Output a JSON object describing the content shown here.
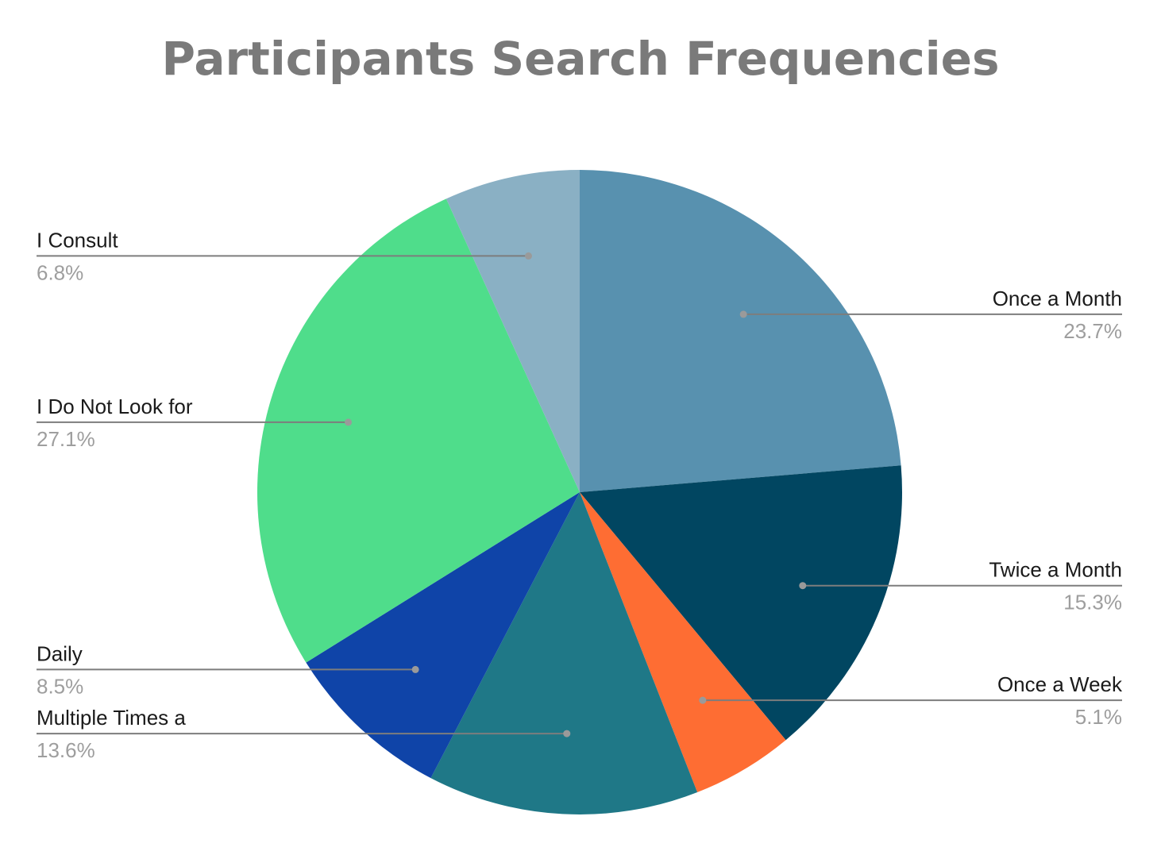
{
  "chart_data": {
    "type": "pie",
    "title": "Participants Search Frequencies",
    "start": "top",
    "direction": "clockwise",
    "slices": [
      {
        "label": "Once a Month",
        "value": 23.7,
        "value_label": "23.7%",
        "color": "#5891af"
      },
      {
        "label": "Twice a Month",
        "value": 15.3,
        "value_label": "15.3%",
        "color": "#014661"
      },
      {
        "label": "Once a Week",
        "value": 5.1,
        "value_label": "5.1%",
        "color": "#fe6d33"
      },
      {
        "label": "Multiple Times a",
        "value": 13.6,
        "value_label": "13.6%",
        "color": "#1f7887"
      },
      {
        "label": "Daily",
        "value": 8.5,
        "value_label": "8.5%",
        "color": "#0f44a8"
      },
      {
        "label": "I Do Not Look for",
        "value": 27.1,
        "value_label": "27.1%",
        "color": "#4fdd8b"
      },
      {
        "label": "I Consult",
        "value": 6.8,
        "value_label": "6.8%",
        "color": "#8ab0c4"
      }
    ],
    "label_side": {
      "Once a Month": "right",
      "Twice a Month": "right",
      "Once a Week": "right",
      "Multiple Times a": "left",
      "Daily": "left",
      "I Do Not Look for": "left",
      "I Consult": "left"
    }
  }
}
